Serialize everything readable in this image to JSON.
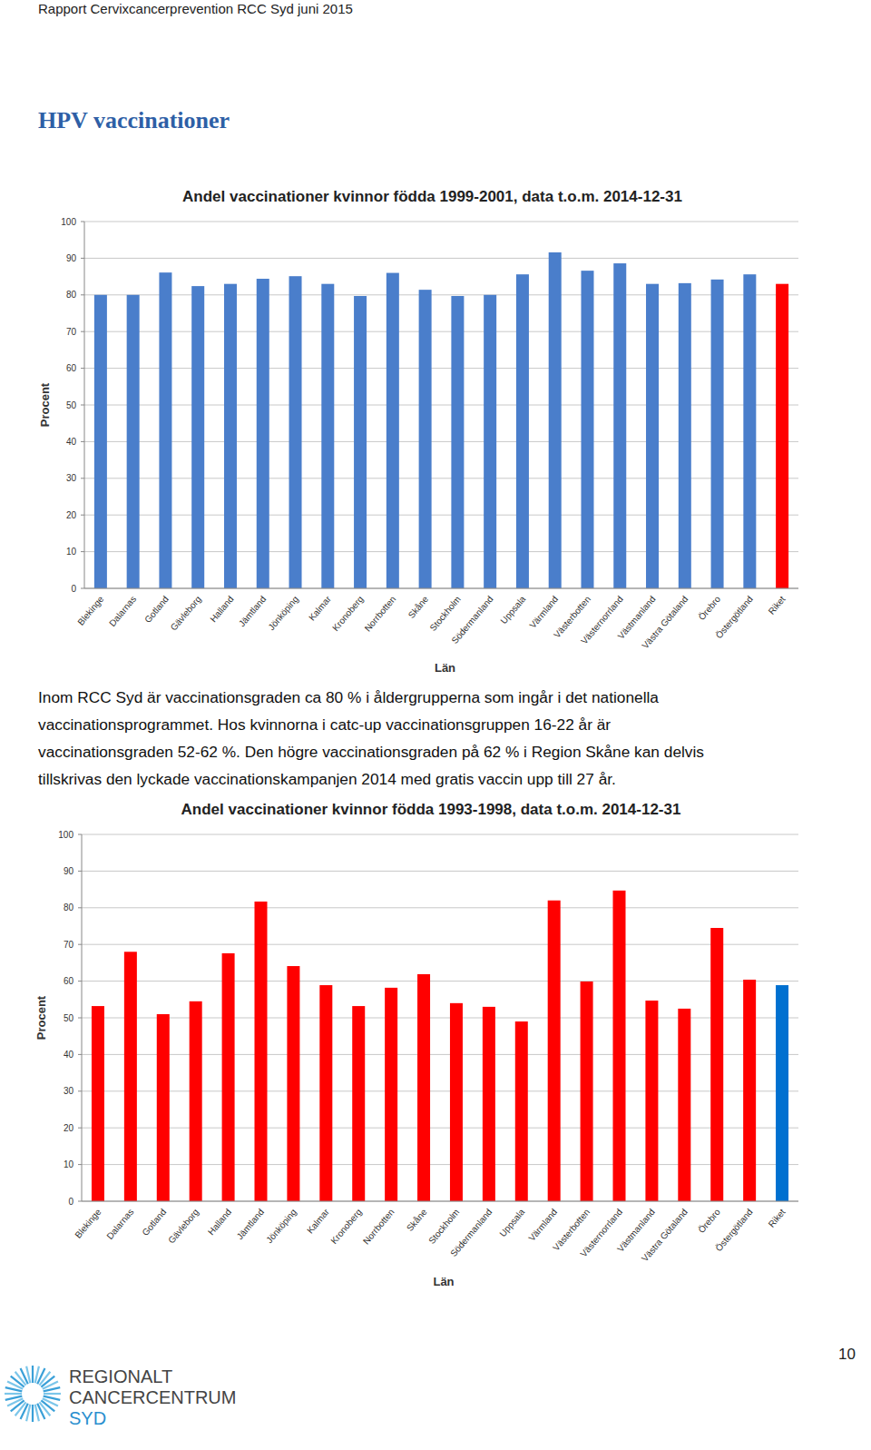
{
  "header": {
    "text": "Rapport Cervixcancerprevention RCC Syd juni 2015"
  },
  "heading": "HPV vaccinationer",
  "paragraph": {
    "lines": [
      "Inom RCC Syd är vaccinationsgraden ca 80 % i åldergrupperna som ingår i det nationella",
      "vaccinationsprogrammet. Hos kvinnorna i catc-up vaccinationsgruppen 16-22 år är",
      "vaccinationsgraden 52-62 %. Den högre vaccinationsgraden på 62 % i Region Skåne kan delvis",
      "tillskrivas den lyckade vaccinationskampanjen 2014 med gratis vaccin upp till 27 år."
    ]
  },
  "footer": {
    "logo": [
      "REGIONALT",
      "CANCERCENTRUM",
      "SYD"
    ],
    "page": "10"
  },
  "chart_data": [
    {
      "type": "bar",
      "title": "Andel vaccinationer kvinnor födda 1999-2001, data t.o.m. 2014-12-31",
      "x_label": "Län",
      "y_label": "Procent",
      "categories": [
        "Blekinge",
        "Dalarnas",
        "Gotland",
        "Gävleborg",
        "Halland",
        "Jämtland",
        "Jönköping",
        "Kalmar",
        "Kronoberg",
        "Norrbotten",
        "Skåne",
        "Stockholm",
        "Södermanland",
        "Uppsala",
        "Värmland",
        "Västerbotten",
        "Västernorrland",
        "Västmanland",
        "Västra Götaland",
        "Örebro",
        "Östergötland",
        "Riket"
      ],
      "values": [
        80,
        80,
        86.1,
        82.4,
        83,
        84.4,
        85.1,
        83,
        79.7,
        86,
        81.4,
        79.7,
        80,
        85.6,
        91.6,
        86.6,
        88.6,
        83,
        83.2,
        84.2,
        85.6,
        83
      ],
      "colors": [
        "#4a7ecb",
        "#4a7ecb",
        "#4a7ecb",
        "#4a7ecb",
        "#4a7ecb",
        "#4a7ecb",
        "#4a7ecb",
        "#4a7ecb",
        "#4a7ecb",
        "#4a7ecb",
        "#4a7ecb",
        "#4a7ecb",
        "#4a7ecb",
        "#4a7ecb",
        "#4a7ecb",
        "#4a7ecb",
        "#4a7ecb",
        "#4a7ecb",
        "#4a7ecb",
        "#4a7ecb",
        "#4a7ecb",
        "#ff0000"
      ],
      "ylim": [
        0,
        100
      ],
      "yticks": [
        0,
        10,
        20,
        30,
        40,
        50,
        60,
        70,
        80,
        90,
        100
      ],
      "grid": true
    },
    {
      "type": "bar",
      "title": "Andel vaccinationer kvinnor födda 1993-1998, data t.o.m. 2014-12-31",
      "x_label": "Län",
      "y_label": "Procent",
      "categories": [
        "Blekinge",
        "Dalarnas",
        "Gotland",
        "Gävleborg",
        "Halland",
        "Jämtland",
        "Jönköping",
        "Kalmar",
        "Kronoberg",
        "Norrbotten",
        "Skåne",
        "Stockholm",
        "Södermanland",
        "Uppsala",
        "Värmland",
        "Västerbotten",
        "Västernorrland",
        "Västmanland",
        "Västra Götaland",
        "Örebro",
        "Östergötland",
        "Riket"
      ],
      "values": [
        53.2,
        68,
        51,
        54.5,
        67.6,
        81.7,
        64.1,
        58.9,
        53.2,
        58.2,
        61.9,
        54,
        53,
        49,
        82,
        59.9,
        84.7,
        54.7,
        52.5,
        74.5,
        60.4,
        58.9
      ],
      "colors": [
        "#ff0000",
        "#ff0000",
        "#ff0000",
        "#ff0000",
        "#ff0000",
        "#ff0000",
        "#ff0000",
        "#ff0000",
        "#ff0000",
        "#ff0000",
        "#ff0000",
        "#ff0000",
        "#ff0000",
        "#ff0000",
        "#ff0000",
        "#ff0000",
        "#ff0000",
        "#ff0000",
        "#ff0000",
        "#ff0000",
        "#ff0000",
        "#0070d0"
      ],
      "ylim": [
        0,
        100
      ],
      "yticks": [
        0,
        10,
        20,
        30,
        40,
        50,
        60,
        70,
        80,
        90,
        100
      ],
      "grid": true
    }
  ]
}
